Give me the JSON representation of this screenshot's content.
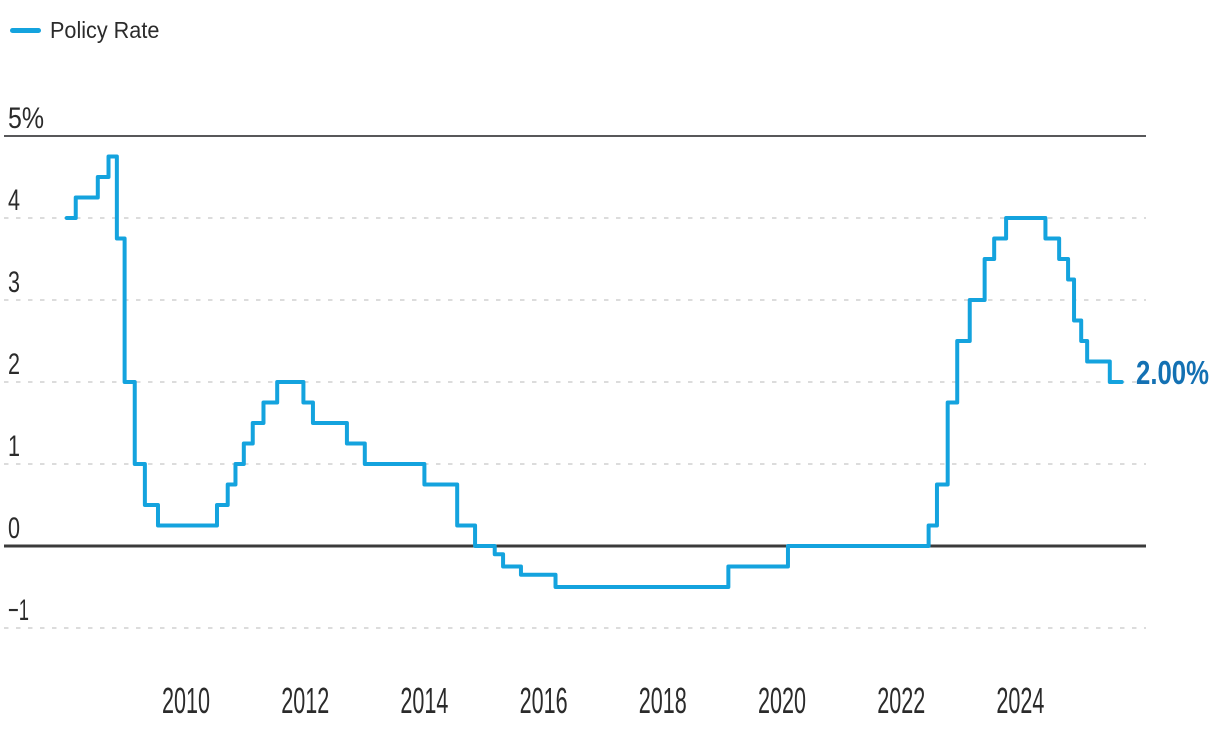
{
  "legend": {
    "label": "Policy Rate",
    "position": "top-left"
  },
  "chart_data": {
    "type": "line",
    "step": true,
    "title": "",
    "xlabel": "",
    "ylabel": "",
    "grid": true,
    "legend_position": "top-left",
    "xlim": [
      2007.9,
      2026.1
    ],
    "ylim": [
      -1.6,
      5
    ],
    "series": [
      {
        "name": "Policy Rate",
        "color": "#14A3DE",
        "points": [
          [
            2008.0,
            4.0
          ],
          [
            2008.15,
            4.25
          ],
          [
            2008.52,
            4.5
          ],
          [
            2008.7,
            4.75
          ],
          [
            2008.84,
            3.75
          ],
          [
            2008.97,
            2.0
          ],
          [
            2009.14,
            1.0
          ],
          [
            2009.31,
            0.5
          ],
          [
            2009.53,
            0.25
          ],
          [
            2010.52,
            0.5
          ],
          [
            2010.7,
            0.75
          ],
          [
            2010.83,
            1.0
          ],
          [
            2010.97,
            1.25
          ],
          [
            2011.12,
            1.5
          ],
          [
            2011.3,
            1.75
          ],
          [
            2011.53,
            2.0
          ],
          [
            2011.97,
            1.75
          ],
          [
            2012.13,
            1.5
          ],
          [
            2012.7,
            1.25
          ],
          [
            2013.0,
            1.0
          ],
          [
            2014.0,
            0.75
          ],
          [
            2014.55,
            0.25
          ],
          [
            2014.85,
            0.0
          ],
          [
            2015.18,
            -0.1
          ],
          [
            2015.32,
            -0.25
          ],
          [
            2015.62,
            -0.35
          ],
          [
            2016.2,
            -0.5
          ],
          [
            2019.1,
            -0.25
          ],
          [
            2020.1,
            0.0
          ],
          [
            2022.46,
            0.25
          ],
          [
            2022.6,
            0.75
          ],
          [
            2022.78,
            1.75
          ],
          [
            2022.94,
            2.5
          ],
          [
            2023.15,
            3.0
          ],
          [
            2023.4,
            3.5
          ],
          [
            2023.56,
            3.75
          ],
          [
            2023.76,
            4.0
          ],
          [
            2024.42,
            3.75
          ],
          [
            2024.65,
            3.5
          ],
          [
            2024.8,
            3.25
          ],
          [
            2024.9,
            2.75
          ],
          [
            2025.02,
            2.5
          ],
          [
            2025.12,
            2.25
          ],
          [
            2025.5,
            2.0
          ]
        ]
      }
    ],
    "x_end": 2025.7,
    "end_label": "2.00%",
    "end_label_color": "#1471B3",
    "yticks": [
      {
        "value": 5,
        "label": "5%"
      },
      {
        "value": 4,
        "label": "4"
      },
      {
        "value": 3,
        "label": "3"
      },
      {
        "value": 2,
        "label": "2"
      },
      {
        "value": 1,
        "label": "1"
      },
      {
        "value": 0,
        "label": "0"
      },
      {
        "value": -1,
        "label": "−1"
      }
    ],
    "xticks": [
      {
        "value": 2010,
        "label": "2010"
      },
      {
        "value": 2012,
        "label": "2012"
      },
      {
        "value": 2014,
        "label": "2014"
      },
      {
        "value": 2016,
        "label": "2016"
      },
      {
        "value": 2018,
        "label": "2018"
      },
      {
        "value": 2020,
        "label": "2020"
      },
      {
        "value": 2022,
        "label": "2022"
      },
      {
        "value": 2024,
        "label": "2024"
      }
    ],
    "colors": {
      "line": "#14A3DE",
      "dashed_grid": "#DCDCDC",
      "top_rule": "#58585A",
      "zero_line": "#3B3B3B",
      "tick_text": "#2B2B2B"
    }
  }
}
